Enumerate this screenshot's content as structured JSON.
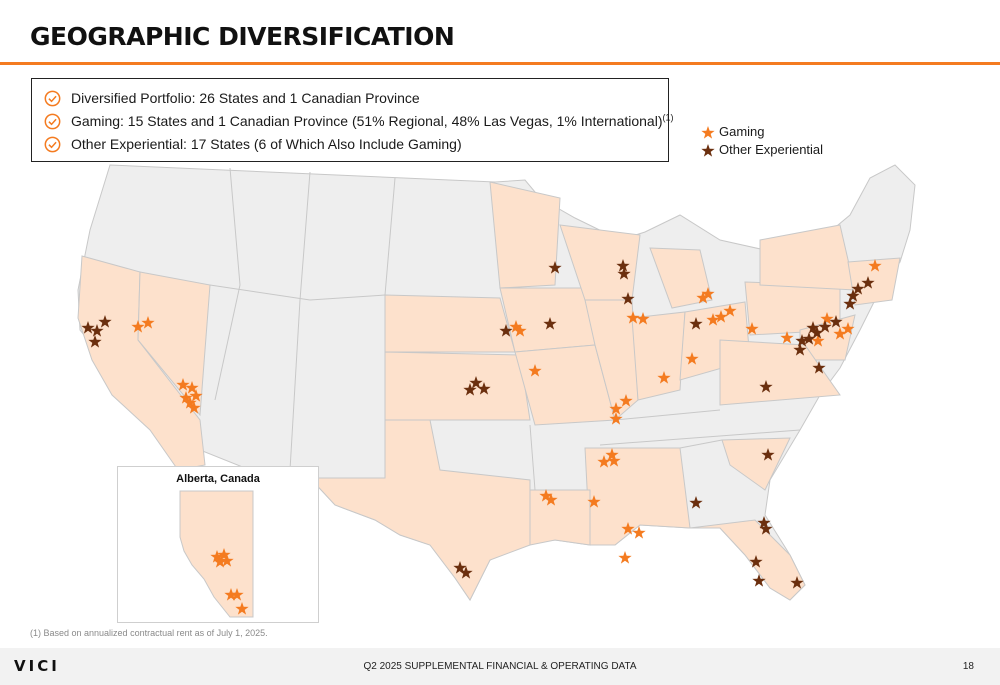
{
  "page": {
    "title": "GEOGRAPHIC DIVERSIFICATION",
    "accent_color": "#f47b20"
  },
  "bullets": [
    {
      "icon": "check-circle-icon",
      "text": "Diversified Portfolio: 26 States and 1 Canadian Province",
      "footnote": ""
    },
    {
      "icon": "check-circle-icon",
      "text": "Gaming: 15 States and 1 Canadian Province (51% Regional, 48% Las Vegas, 1% International)",
      "footnote": "(1)"
    },
    {
      "icon": "check-circle-icon",
      "text": "Other Experiential: 17 States (6 of Which Also Include Gaming)",
      "footnote": ""
    }
  ],
  "legend": {
    "gaming": {
      "label": "Gaming",
      "color": "#f47b20",
      "icon": "star-icon"
    },
    "other": {
      "label": "Other Experiential",
      "color": "#6b2f0e",
      "icon": "star-icon"
    }
  },
  "map": {
    "highlight_color": "#fde1cc",
    "base_color": "#eeeeee",
    "border_color": "#c8c8c8",
    "inset_label": "Alberta, Canada"
  },
  "footnote": "(1) Based on annualized contractual rent as of July 1, 2025.",
  "footer": {
    "logo": "VICI",
    "center": "Q2 2025 SUPPLEMENTAL FINANCIAL & OPERATING DATA",
    "page_number": "18"
  }
}
